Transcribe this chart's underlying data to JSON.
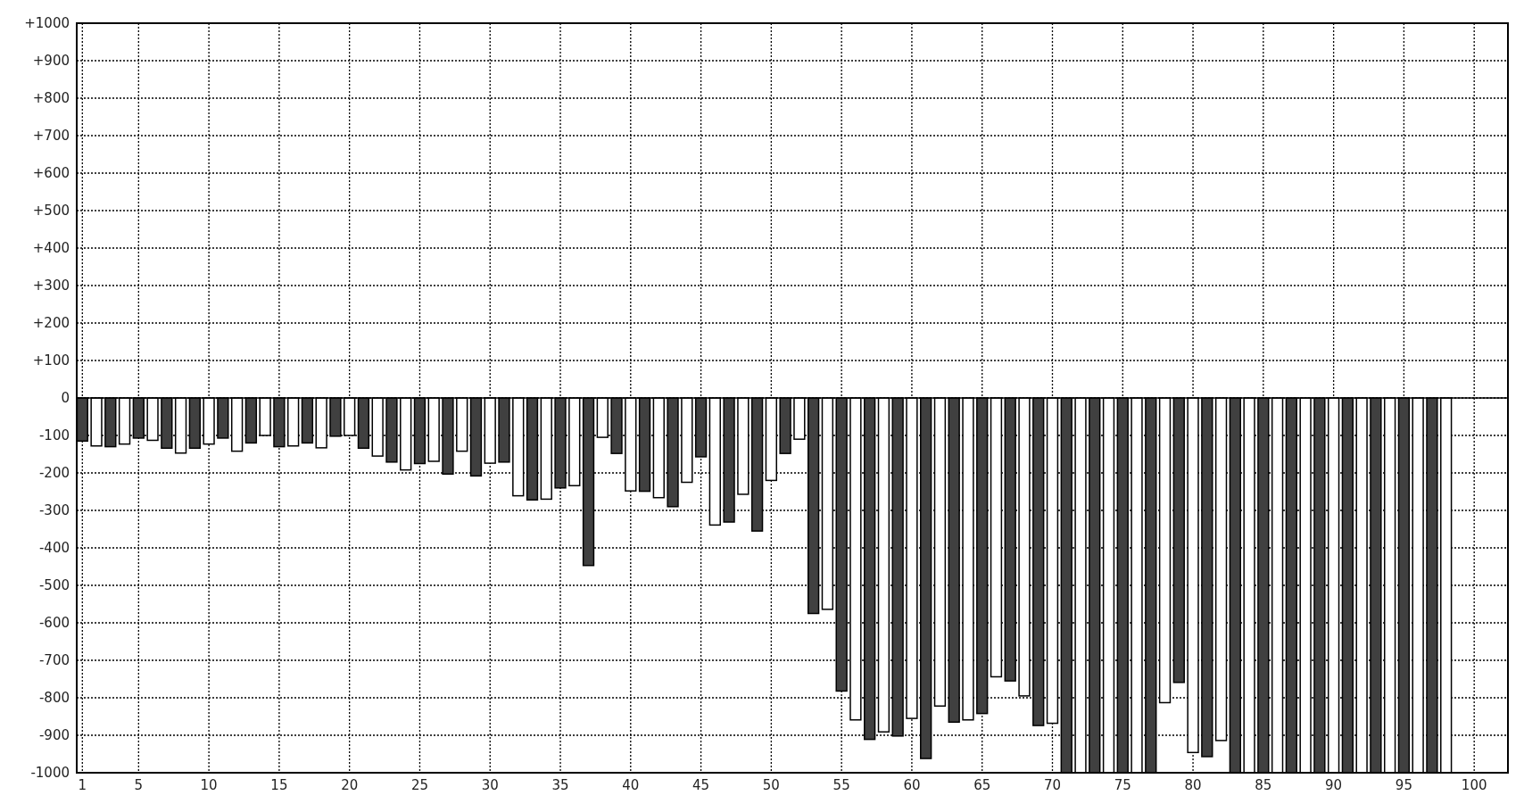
{
  "chart_data": {
    "type": "bar",
    "x": [
      1,
      2,
      3,
      4,
      5,
      6,
      7,
      8,
      9,
      10,
      11,
      12,
      13,
      14,
      15,
      16,
      17,
      18,
      19,
      20,
      21,
      22,
      23,
      24,
      25,
      26,
      27,
      28,
      29,
      30,
      31,
      32,
      33,
      34,
      35,
      36,
      37,
      38,
      39,
      40,
      41,
      42,
      43,
      44,
      45,
      46,
      47,
      48,
      49,
      50,
      51,
      52,
      53,
      54,
      55,
      56,
      57,
      58,
      59,
      60,
      61,
      62,
      63,
      64,
      65,
      66,
      67,
      68,
      69,
      70,
      71,
      72,
      73,
      74,
      75,
      76,
      77,
      78,
      79,
      80,
      81,
      82,
      83,
      84,
      85,
      86,
      87,
      88,
      89,
      90,
      91,
      92,
      93,
      94,
      95,
      96,
      97,
      98
    ],
    "values": [
      -115,
      -128,
      -130,
      -123,
      -107,
      -113,
      -134,
      -147,
      -134,
      -123,
      -107,
      -142,
      -120,
      -100,
      -130,
      -128,
      -120,
      -133,
      -102,
      -100,
      -134,
      -155,
      -171,
      -192,
      -175,
      -169,
      -203,
      -142,
      -208,
      -174,
      -171,
      -261,
      -272,
      -270,
      -240,
      -234,
      -447,
      -105,
      -148,
      -248,
      -249,
      -266,
      -290,
      -225,
      -157,
      -339,
      -331,
      -257,
      -355,
      -220,
      -148,
      -110,
      -575,
      -564,
      -782,
      -859,
      -911,
      -891,
      -902,
      -855,
      -962,
      -822,
      -865,
      -859,
      -842,
      -744,
      -755,
      -795,
      -874,
      -868,
      -1000,
      -1000,
      -1000,
      -1000,
      -1000,
      -1000,
      -1000,
      -813,
      -759,
      -946,
      -957,
      -914,
      -1000,
      -1000,
      -1000,
      -1000,
      -1000,
      -1000,
      -1000,
      -1000,
      -1000,
      -1000,
      -1000,
      -1000,
      -1000,
      -1000,
      -1000,
      -1000
    ],
    "colors": [
      "#404040",
      "#ffffff",
      "#404040",
      "#ffffff",
      "#404040",
      "#ffffff",
      "#404040",
      "#ffffff",
      "#404040",
      "#ffffff",
      "#404040",
      "#ffffff",
      "#404040",
      "#ffffff",
      "#404040",
      "#ffffff",
      "#404040",
      "#ffffff",
      "#404040",
      "#ffffff",
      "#404040",
      "#ffffff",
      "#404040",
      "#ffffff",
      "#404040",
      "#ffffff",
      "#404040",
      "#ffffff",
      "#404040",
      "#ffffff",
      "#404040",
      "#ffffff",
      "#404040",
      "#ffffff",
      "#404040",
      "#ffffff",
      "#404040",
      "#ffffff",
      "#404040",
      "#ffffff",
      "#404040",
      "#ffffff",
      "#404040",
      "#ffffff",
      "#404040",
      "#ffffff",
      "#404040",
      "#ffffff",
      "#404040",
      "#ffffff",
      "#404040",
      "#ffffff",
      "#404040",
      "#ffffff",
      "#404040",
      "#ffffff",
      "#404040",
      "#ffffff",
      "#404040",
      "#ffffff",
      "#404040",
      "#ffffff",
      "#404040",
      "#ffffff",
      "#404040",
      "#ffffff",
      "#404040",
      "#ffffff",
      "#404040",
      "#ffffff",
      "#404040",
      "#ffffff",
      "#404040",
      "#ffffff",
      "#404040",
      "#ffffff",
      "#404040",
      "#ffffff",
      "#404040",
      "#ffffff",
      "#404040",
      "#ffffff",
      "#404040",
      "#ffffff",
      "#404040",
      "#ffffff",
      "#404040",
      "#ffffff",
      "#404040",
      "#ffffff",
      "#404040",
      "#ffffff",
      "#404040",
      "#ffffff",
      "#404040",
      "#ffffff",
      "#404040",
      "#ffffff"
    ],
    "xlim": [
      0.6,
      102.4
    ],
    "xticks": [
      1,
      5,
      10,
      15,
      20,
      25,
      30,
      35,
      40,
      45,
      50,
      55,
      60,
      65,
      70,
      75,
      80,
      85,
      90,
      95,
      100
    ],
    "ylim": [
      -1000,
      1000
    ],
    "yticks": [
      {
        "value": 1000,
        "label": "+1000"
      },
      {
        "value": 900,
        "label": "+900"
      },
      {
        "value": 800,
        "label": "+800"
      },
      {
        "value": 700,
        "label": "+700"
      },
      {
        "value": 600,
        "label": "+600"
      },
      {
        "value": 500,
        "label": "+500"
      },
      {
        "value": 400,
        "label": "+400"
      },
      {
        "value": 300,
        "label": "+300"
      },
      {
        "value": 200,
        "label": "+200"
      },
      {
        "value": 100,
        "label": "+100"
      },
      0,
      -100,
      -200,
      -300,
      -400,
      -500,
      -600,
      -700,
      -800,
      -900,
      -1000
    ],
    "grid": true
  }
}
